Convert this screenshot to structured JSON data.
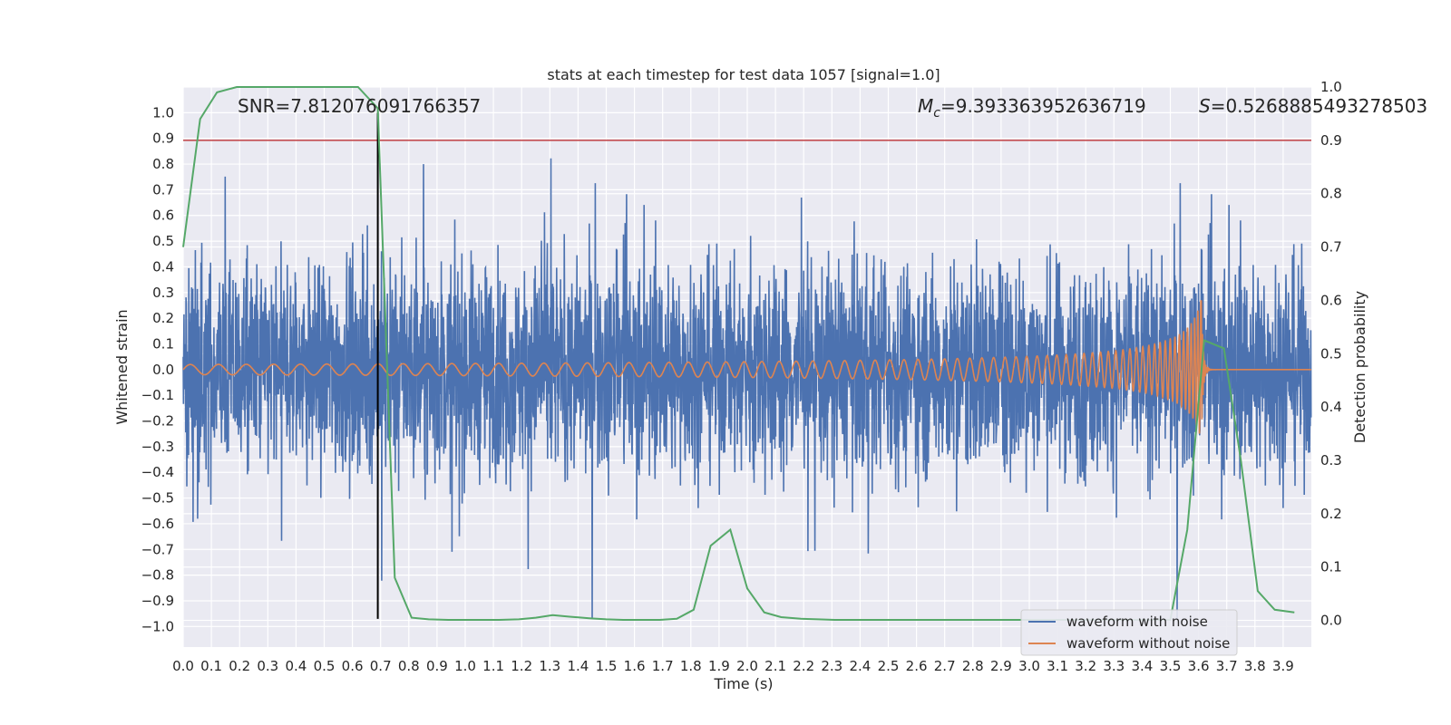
{
  "chart_data": {
    "type": "line",
    "title": "stats at each timestep for test data 1057 [signal=1.0]",
    "xlabel": "Time (s)",
    "ylabel_left": "Whitened strain",
    "ylabel_right": "Detection probability",
    "xlim": [
      0.0,
      4.0
    ],
    "ylim_left": [
      -1.08,
      1.1
    ],
    "ylim_right": [
      -0.05,
      1.0
    ],
    "xticks": [
      0.0,
      0.1,
      0.2,
      0.3,
      0.4,
      0.5,
      0.6,
      0.7,
      0.8,
      0.9,
      1.0,
      1.1,
      1.2,
      1.3,
      1.4,
      1.5,
      1.6,
      1.7,
      1.8,
      1.9,
      2.0,
      2.1,
      2.2,
      2.3,
      2.4,
      2.5,
      2.6,
      2.7,
      2.8,
      2.9,
      3.0,
      3.1,
      3.2,
      3.3,
      3.4,
      3.5,
      3.6,
      3.7,
      3.8,
      3.9
    ],
    "xtick_labels": [
      "0.0",
      "0.1",
      "0.2",
      "0.3",
      "0.4",
      "0.5",
      "0.6",
      "0.7",
      "0.8",
      "0.9",
      "1.0",
      "1.1",
      "1.2",
      "1.3",
      "1.4",
      "1.5",
      "1.6",
      "1.7",
      "1.8",
      "1.9",
      "2.0",
      "2.1",
      "2.2",
      "2.3",
      "2.4",
      "2.5",
      "2.6",
      "2.7",
      "2.8",
      "2.9",
      "3.0",
      "3.1",
      "3.2",
      "3.3",
      "3.4",
      "3.5",
      "3.6",
      "3.7",
      "3.8",
      "3.9"
    ],
    "yticks_left": [
      -1.0,
      -0.9,
      -0.8,
      -0.7,
      -0.6,
      -0.5,
      -0.4,
      -0.3,
      -0.2,
      -0.1,
      0.0,
      0.1,
      0.2,
      0.3,
      0.4,
      0.5,
      0.6,
      0.7,
      0.8,
      0.9,
      1.0
    ],
    "ytick_labels_left": [
      "−1.0",
      "−0.9",
      "−0.8",
      "−0.7",
      "−0.6",
      "−0.5",
      "−0.4",
      "−0.3",
      "−0.2",
      "−0.1",
      "0.0",
      "0.1",
      "0.2",
      "0.3",
      "0.4",
      "0.5",
      "0.6",
      "0.7",
      "0.8",
      "0.9",
      "1.0"
    ],
    "yticks_right": [
      0.0,
      0.1,
      0.2,
      0.3,
      0.4,
      0.5,
      0.6,
      0.7,
      0.8,
      0.9,
      1.0
    ],
    "ytick_labels_right": [
      "0.0",
      "0.1",
      "0.2",
      "0.3",
      "0.4",
      "0.5",
      "0.6",
      "0.7",
      "0.8",
      "0.9",
      "1.0"
    ],
    "grid": true,
    "legend_position": "lower-right",
    "series": [
      {
        "name": "waveform with noise",
        "color": "#4c72b0",
        "axis": "left",
        "description_values": "dense noise, amplitude mostly within -0.6..0.6, peaks up to 1.0 and down to -0.97"
      },
      {
        "name": "waveform without noise",
        "color": "#dd8452",
        "axis": "left",
        "chirp": {
          "start_amplitude": 0.02,
          "peak_amplitude": 0.27,
          "min_amplitude": -0.25,
          "merger_time": 3.61
        }
      },
      {
        "color": "#55a868",
        "axis": "right",
        "x": [
          0.0,
          0.06,
          0.12,
          0.19,
          0.25,
          0.31,
          0.37,
          0.44,
          0.5,
          0.56,
          0.62,
          0.69,
          0.75,
          0.81,
          0.87,
          0.94,
          1.0,
          1.06,
          1.12,
          1.19,
          1.25,
          1.31,
          1.37,
          1.44,
          1.5,
          1.56,
          1.62,
          1.69,
          1.75,
          1.81,
          1.87,
          1.94,
          2.0,
          2.06,
          2.12,
          2.19,
          2.25,
          2.31,
          2.37,
          2.44,
          2.5,
          2.56,
          2.62,
          2.69,
          2.75,
          2.81,
          2.87,
          2.94,
          3.0,
          3.06,
          3.12,
          3.19,
          3.25,
          3.31,
          3.37,
          3.44,
          3.5,
          3.56,
          3.62,
          3.69,
          3.75,
          3.81,
          3.87,
          3.94
        ],
        "y": [
          0.7,
          0.94,
          0.99,
          1.0,
          1.0,
          1.0,
          1.0,
          1.0,
          1.0,
          1.0,
          1.0,
          0.96,
          0.08,
          0.005,
          0.002,
          0.001,
          0.001,
          0.001,
          0.001,
          0.002,
          0.005,
          0.01,
          0.007,
          0.004,
          0.002,
          0.001,
          0.001,
          0.001,
          0.003,
          0.02,
          0.14,
          0.17,
          0.06,
          0.015,
          0.006,
          0.003,
          0.002,
          0.001,
          0.001,
          0.001,
          0.001,
          0.001,
          0.001,
          0.001,
          0.001,
          0.001,
          0.001,
          0.001,
          0.001,
          0.001,
          0.001,
          0.001,
          0.001,
          0.001,
          0.001,
          0.001,
          0.001,
          0.17,
          0.525,
          0.51,
          0.3,
          0.055,
          0.02,
          0.015
        ]
      }
    ],
    "threshold_line": {
      "value": 0.9,
      "axis": "right",
      "color": "#c44e52"
    },
    "vertical_line": {
      "x": 0.69,
      "color": "#000000"
    },
    "annotations": [
      {
        "text": "SNR=7.812076091766357"
      },
      {
        "symbol": "M",
        "subscript": "c",
        "text": "=9.393363952636719"
      },
      {
        "symbol": "S",
        "text": "=0.5268885493278503"
      }
    ]
  }
}
